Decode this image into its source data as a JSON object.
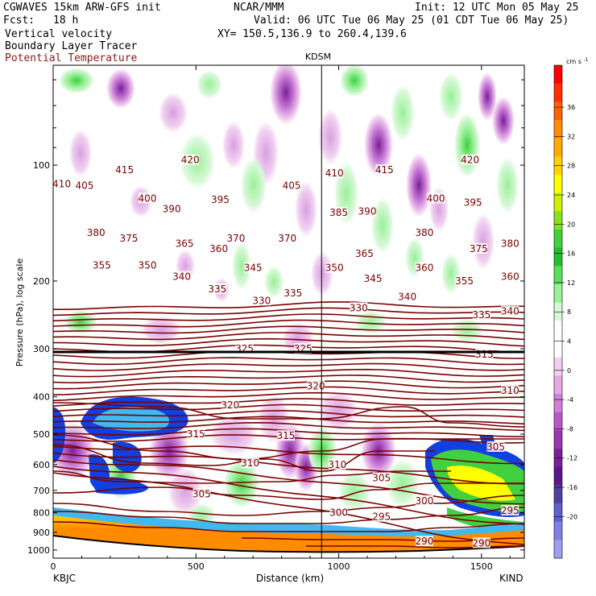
{
  "header": {
    "model": "CGWAVES 15km ARW-GFS init",
    "org": "NCAR/MMM",
    "init": "Init: 12 UTC Mon 05 May 25",
    "fcst_label": "Fcst:",
    "fcst_value": "18 h",
    "valid": "Valid: 06 UTC Tue 06 May 25 (01 CDT Tue 06 May 25)",
    "fields": [
      "Vertical velocity",
      "Boundary Layer Tracer",
      "Potential Temperature"
    ],
    "xy": "XY= 150.5,136.9 to 260.4,139.6"
  },
  "colors": {
    "theta": "#7a0000",
    "pv": "#000000",
    "potential_temperature_label": "#8b1a1a"
  },
  "chart_data": {
    "type": "cross-section",
    "title": "KDSM",
    "xlabel": "Distance (km)",
    "ylabel": "Pressure (hPa), log scale",
    "xlim": [
      0,
      1650
    ],
    "ylim": [
      1050,
      55
    ],
    "x_ticks": [
      0,
      500,
      1000,
      1500
    ],
    "y_ticks": [
      100,
      200,
      300,
      400,
      500,
      600,
      700,
      800,
      900,
      1000
    ],
    "x_tick_labels": [
      "0",
      "500",
      "1000",
      "1500"
    ],
    "y_tick_labels": [
      "100",
      "200",
      "300",
      "400",
      "500",
      "600",
      "700",
      "800",
      "900",
      "1000"
    ],
    "left_station": "KBJC",
    "right_station": "KIND",
    "marker_x": 940,
    "colorbar": {
      "unit": "cm s",
      "unit_exp": "-1",
      "labels": [
        "36",
        "32",
        "28",
        "24",
        "20",
        "16",
        "12",
        "8",
        "4",
        "0",
        "-4",
        "-8",
        "-12",
        "-16",
        "-20"
      ],
      "colors": [
        "#ff0000",
        "#ff3000",
        "#ff6000",
        "#ff8c00",
        "#ffaa00",
        "#ffd200",
        "#ffff00",
        "#ccf000",
        "#88e020",
        "#40d040",
        "#20c030",
        "#58e058",
        "#98f098",
        "#d8f8d8",
        "#ffffff",
        "#ffffff",
        "#f0d0f0",
        "#e4a8e4",
        "#d080d8",
        "#b858c8",
        "#9838b0",
        "#7a2098",
        "#5a1888",
        "#5040a0",
        "#6060d0",
        "#7f7fe8",
        "#9f9ff0"
      ]
    },
    "theta_labels": [
      {
        "v": "420",
        "x": 480,
        "p": 97
      },
      {
        "v": "420",
        "x": 1460,
        "p": 97
      },
      {
        "v": "415",
        "x": 250,
        "p": 103
      },
      {
        "v": "415",
        "x": 1160,
        "p": 103
      },
      {
        "v": "410",
        "x": 30,
        "p": 112
      },
      {
        "v": "410",
        "x": 985,
        "p": 105
      },
      {
        "v": "405",
        "x": 110,
        "p": 113
      },
      {
        "v": "405",
        "x": 835,
        "p": 113
      },
      {
        "v": "400",
        "x": 330,
        "p": 122
      },
      {
        "v": "400",
        "x": 1340,
        "p": 122
      },
      {
        "v": "395",
        "x": 585,
        "p": 123
      },
      {
        "v": "395",
        "x": 1470,
        "p": 125
      },
      {
        "v": "390",
        "x": 415,
        "p": 130
      },
      {
        "v": "390",
        "x": 1100,
        "p": 132
      },
      {
        "v": "385",
        "x": 1000,
        "p": 133
      },
      {
        "v": "380",
        "x": 150,
        "p": 150
      },
      {
        "v": "380",
        "x": 1300,
        "p": 150
      },
      {
        "v": "380",
        "x": 1600,
        "p": 160
      },
      {
        "v": "375",
        "x": 265,
        "p": 155
      },
      {
        "v": "375",
        "x": 1490,
        "p": 165
      },
      {
        "v": "370",
        "x": 640,
        "p": 155
      },
      {
        "v": "370",
        "x": 820,
        "p": 155
      },
      {
        "v": "365",
        "x": 460,
        "p": 160
      },
      {
        "v": "365",
        "x": 1090,
        "p": 170
      },
      {
        "v": "360",
        "x": 580,
        "p": 165
      },
      {
        "v": "360",
        "x": 1300,
        "p": 185
      },
      {
        "v": "360",
        "x": 1600,
        "p": 195
      },
      {
        "v": "355",
        "x": 170,
        "p": 182
      },
      {
        "v": "355",
        "x": 1440,
        "p": 200
      },
      {
        "v": "350",
        "x": 330,
        "p": 182
      },
      {
        "v": "350",
        "x": 985,
        "p": 185
      },
      {
        "v": "345",
        "x": 700,
        "p": 185
      },
      {
        "v": "345",
        "x": 1120,
        "p": 197
      },
      {
        "v": "340",
        "x": 450,
        "p": 195
      },
      {
        "v": "340",
        "x": 1240,
        "p": 220
      },
      {
        "v": "340",
        "x": 1600,
        "p": 240
      },
      {
        "v": "335",
        "x": 575,
        "p": 210
      },
      {
        "v": "335",
        "x": 840,
        "p": 215
      },
      {
        "v": "335",
        "x": 1500,
        "p": 245
      },
      {
        "v": "330",
        "x": 730,
        "p": 225
      },
      {
        "v": "330",
        "x": 1070,
        "p": 235
      },
      {
        "v": "325",
        "x": 670,
        "p": 300
      },
      {
        "v": "325",
        "x": 875,
        "p": 300
      },
      {
        "v": "320",
        "x": 620,
        "p": 420
      },
      {
        "v": "320",
        "x": 920,
        "p": 375
      },
      {
        "v": "315",
        "x": 500,
        "p": 500
      },
      {
        "v": "315",
        "x": 815,
        "p": 505
      },
      {
        "v": "315",
        "x": 1510,
        "p": 310
      },
      {
        "v": "310",
        "x": 690,
        "p": 595
      },
      {
        "v": "310",
        "x": 995,
        "p": 600
      },
      {
        "v": "310",
        "x": 1600,
        "p": 385
      },
      {
        "v": "305",
        "x": 520,
        "p": 715
      },
      {
        "v": "305",
        "x": 1150,
        "p": 650
      },
      {
        "v": "305",
        "x": 1550,
        "p": 540
      },
      {
        "v": "300",
        "x": 1000,
        "p": 800
      },
      {
        "v": "300",
        "x": 1300,
        "p": 745
      },
      {
        "v": "295",
        "x": 1150,
        "p": 820
      },
      {
        "v": "295",
        "x": 1600,
        "p": 790
      },
      {
        "v": "290",
        "x": 1300,
        "p": 950
      },
      {
        "v": "290",
        "x": 1500,
        "p": 960
      }
    ]
  }
}
